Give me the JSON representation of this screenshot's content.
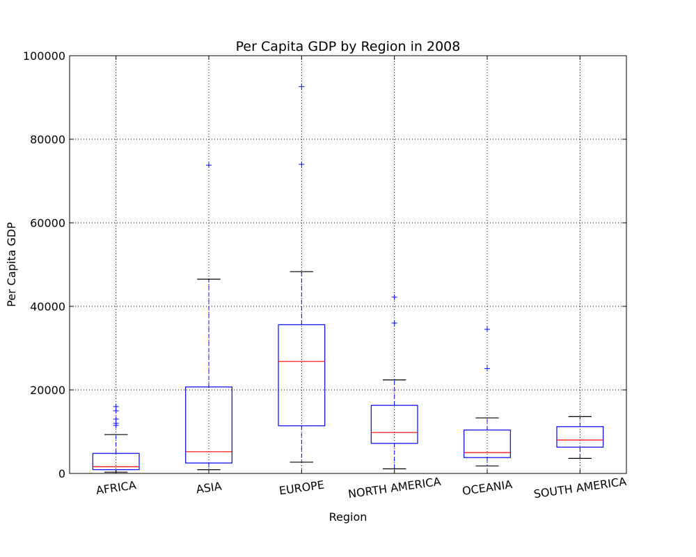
{
  "chart_data": {
    "type": "box",
    "title": "Per Capita GDP by Region in 2008",
    "xlabel": "Region",
    "ylabel": "Per Capita GDP",
    "ylim": [
      0,
      100000
    ],
    "yticks": [
      0,
      20000,
      40000,
      60000,
      80000,
      100000
    ],
    "grid": true,
    "categories": [
      "AFRICA",
      "ASIA",
      "EUROPE",
      "NORTH AMERICA",
      "OCEANIA",
      "SOUTH AMERICA"
    ],
    "boxes": [
      {
        "name": "AFRICA",
        "whisker_low": 300,
        "q1": 900,
        "median": 1600,
        "q3": 4800,
        "whisker_high": 9300,
        "outliers": [
          11500,
          12000,
          13000,
          15000,
          16000
        ]
      },
      {
        "name": "ASIA",
        "whisker_low": 900,
        "q1": 2500,
        "median": 5200,
        "q3": 20700,
        "whisker_high": 46500,
        "outliers": [
          73800
        ]
      },
      {
        "name": "EUROPE",
        "whisker_low": 2700,
        "q1": 11400,
        "median": 26800,
        "q3": 35600,
        "whisker_high": 48300,
        "outliers": [
          74000,
          92600
        ]
      },
      {
        "name": "NORTH AMERICA",
        "whisker_low": 1100,
        "q1": 7200,
        "median": 9800,
        "q3": 16300,
        "whisker_high": 22400,
        "outliers": [
          36000,
          42200
        ]
      },
      {
        "name": "OCEANIA",
        "whisker_low": 1800,
        "q1": 3800,
        "median": 5000,
        "q3": 10400,
        "whisker_high": 13300,
        "outliers": [
          25100,
          34500
        ]
      },
      {
        "name": "SOUTH AMERICA",
        "whisker_low": 3600,
        "q1": 6300,
        "median": 8000,
        "q3": 11200,
        "whisker_high": 13600,
        "outliers": []
      }
    ],
    "colors": {
      "box": "#0000ff",
      "median": "#ff0000",
      "cap": "#000000",
      "grid": "#000000",
      "outlier": "#0000ff"
    }
  }
}
